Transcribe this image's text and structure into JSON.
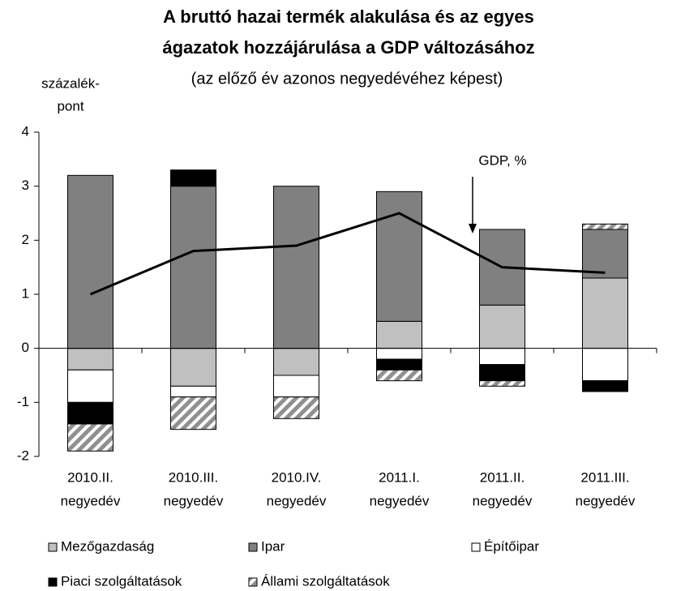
{
  "chart_data": {
    "type": "stacked_bar_line",
    "title": [
      "A bruttó hazai termék alakulása és az egyes",
      "ágazatok hozzájárulása a GDP változásához"
    ],
    "subtitle": "(az előző év azonos negyedévéhez képest)",
    "y_label": [
      "százalék-",
      "pont"
    ],
    "categories": [
      [
        "2010.II.",
        "negyedév"
      ],
      [
        "2010.III.",
        "negyedév"
      ],
      [
        "2010.IV.",
        "negyedév"
      ],
      [
        "2011.I.",
        "negyedév"
      ],
      [
        "2011.II.",
        "negyedév"
      ],
      [
        "2011.III.",
        "negyedév"
      ]
    ],
    "series": [
      {
        "name": "Mezőgazdaság",
        "color": "#c0c0c0",
        "values": [
          -0.4,
          -0.7,
          -0.5,
          0.5,
          0.8,
          1.3
        ]
      },
      {
        "name": "Ipar",
        "color": "#808080",
        "values": [
          3.2,
          3.0,
          3.0,
          2.4,
          1.4,
          0.9
        ]
      },
      {
        "name": "Építőipar",
        "color": "#ffffff",
        "values": [
          -0.6,
          -0.2,
          -0.4,
          -0.2,
          -0.3,
          -0.6
        ]
      },
      {
        "name": "Piaci szolgáltatások",
        "color": "#000000",
        "values": [
          -0.4,
          0.3,
          0,
          -0.2,
          -0.3,
          -0.2
        ]
      },
      {
        "name": "Állami szolgáltatások",
        "color": "#909090",
        "hatch": true,
        "values": [
          -0.5,
          -0.6,
          -0.4,
          -0.2,
          -0.1,
          0.1
        ]
      }
    ],
    "line": {
      "type": "line",
      "color": "#000000",
      "values": [
        1.0,
        1.8,
        1.9,
        2.5,
        1.5,
        1.4
      ]
    },
    "annotation": "GDP, %",
    "ylim": [
      -2,
      4
    ],
    "yticks": [
      -2,
      -1,
      0,
      1,
      2,
      3,
      4
    ],
    "grid": false
  }
}
